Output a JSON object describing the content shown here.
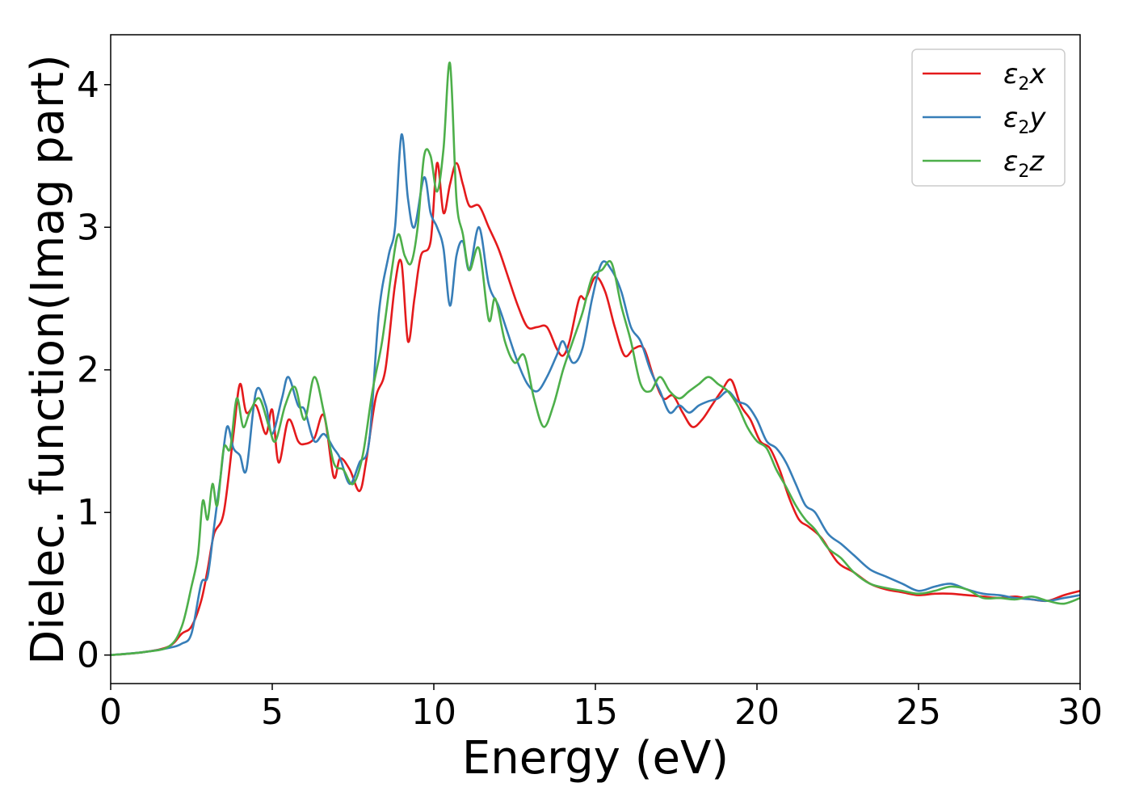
{
  "chart_data": {
    "type": "line",
    "title": "",
    "xlabel": "Energy (eV)",
    "ylabel": "Dielec. function(Imag part)",
    "xlim": [
      0,
      30
    ],
    "ylim": [
      -0.2,
      4.35
    ],
    "xticks": [
      0,
      5,
      10,
      15,
      20,
      25,
      30
    ],
    "yticks": [
      0,
      1,
      2,
      3,
      4
    ],
    "grid": false,
    "legend_position": "top-right",
    "series": [
      {
        "name": "ε2x",
        "legend": {
          "sym": "ε",
          "sub": "2",
          "var": "x"
        },
        "color": "#e41a1c",
        "x": [
          0,
          1,
          1.8,
          2.2,
          2.5,
          2.8,
          3.0,
          3.2,
          3.5,
          3.8,
          4.0,
          4.2,
          4.5,
          4.8,
          5.0,
          5.2,
          5.5,
          5.8,
          6.0,
          6.3,
          6.6,
          6.9,
          7.1,
          7.4,
          7.7,
          7.9,
          8.2,
          8.5,
          8.8,
          9.0,
          9.2,
          9.4,
          9.6,
          9.9,
          10.1,
          10.3,
          10.5,
          10.7,
          10.9,
          11.1,
          11.4,
          11.7,
          12.0,
          12.3,
          12.6,
          12.9,
          13.2,
          13.5,
          13.8,
          14.0,
          14.2,
          14.5,
          14.7,
          15.0,
          15.3,
          15.6,
          15.9,
          16.2,
          16.5,
          16.8,
          17.1,
          17.4,
          17.7,
          18.0,
          18.3,
          18.6,
          18.9,
          19.2,
          19.5,
          19.8,
          20.1,
          20.4,
          20.7,
          21.0,
          21.3,
          21.6,
          22.0,
          22.5,
          23.0,
          23.5,
          24.0,
          24.5,
          25.0,
          25.5,
          26.0,
          26.5,
          27.0,
          27.5,
          28.0,
          28.5,
          29.0,
          29.5,
          30.0
        ],
        "y": [
          0,
          0.02,
          0.06,
          0.15,
          0.2,
          0.38,
          0.6,
          0.85,
          1.0,
          1.55,
          1.9,
          1.7,
          1.75,
          1.55,
          1.72,
          1.35,
          1.65,
          1.5,
          1.48,
          1.52,
          1.68,
          1.25,
          1.38,
          1.3,
          1.15,
          1.35,
          1.8,
          2.0,
          2.6,
          2.75,
          2.2,
          2.5,
          2.8,
          2.9,
          3.45,
          3.1,
          3.3,
          3.45,
          3.3,
          3.15,
          3.15,
          3.0,
          2.85,
          2.65,
          2.45,
          2.3,
          2.3,
          2.3,
          2.15,
          2.1,
          2.2,
          2.5,
          2.5,
          2.65,
          2.55,
          2.3,
          2.1,
          2.15,
          2.15,
          1.95,
          1.8,
          1.82,
          1.7,
          1.6,
          1.65,
          1.75,
          1.85,
          1.93,
          1.75,
          1.65,
          1.5,
          1.45,
          1.3,
          1.1,
          0.95,
          0.9,
          0.82,
          0.65,
          0.58,
          0.5,
          0.46,
          0.44,
          0.42,
          0.43,
          0.43,
          0.42,
          0.41,
          0.4,
          0.41,
          0.39,
          0.38,
          0.42,
          0.45
        ]
      },
      {
        "name": "ε2y",
        "legend": {
          "sym": "ε",
          "sub": "2",
          "var": "y"
        },
        "color": "#377eb8",
        "x": [
          0,
          1,
          1.8,
          2.2,
          2.5,
          2.8,
          3.0,
          3.2,
          3.4,
          3.6,
          3.8,
          4.0,
          4.2,
          4.5,
          4.8,
          5.0,
          5.3,
          5.5,
          5.8,
          6.0,
          6.3,
          6.6,
          6.9,
          7.1,
          7.4,
          7.7,
          8.0,
          8.3,
          8.6,
          8.8,
          9.0,
          9.2,
          9.4,
          9.7,
          9.9,
          10.1,
          10.3,
          10.5,
          10.7,
          10.9,
          11.1,
          11.4,
          11.7,
          12.0,
          12.3,
          12.6,
          12.9,
          13.2,
          13.5,
          13.8,
          14.0,
          14.3,
          14.6,
          14.9,
          15.2,
          15.5,
          15.8,
          16.1,
          16.4,
          16.7,
          17.0,
          17.3,
          17.6,
          17.9,
          18.2,
          18.5,
          18.8,
          19.1,
          19.4,
          19.7,
          20.0,
          20.3,
          20.6,
          20.9,
          21.2,
          21.5,
          21.8,
          22.2,
          22.6,
          23.0,
          23.5,
          24.0,
          24.5,
          25.0,
          25.5,
          26.0,
          26.5,
          27.0,
          27.5,
          28.0,
          28.5,
          29.0,
          29.5,
          30.0
        ],
        "y": [
          0,
          0.02,
          0.05,
          0.08,
          0.15,
          0.5,
          0.55,
          0.9,
          1.25,
          1.6,
          1.45,
          1.4,
          1.3,
          1.85,
          1.75,
          1.55,
          1.8,
          1.95,
          1.75,
          1.72,
          1.5,
          1.55,
          1.45,
          1.38,
          1.2,
          1.35,
          1.5,
          2.4,
          2.8,
          3.0,
          3.65,
          3.2,
          3.0,
          3.35,
          3.1,
          3.0,
          2.85,
          2.45,
          2.8,
          2.9,
          2.7,
          3.0,
          2.6,
          2.45,
          2.25,
          2.05,
          1.9,
          1.85,
          1.95,
          2.1,
          2.2,
          2.05,
          2.15,
          2.5,
          2.75,
          2.7,
          2.55,
          2.3,
          2.2,
          2.0,
          1.85,
          1.7,
          1.75,
          1.7,
          1.75,
          1.78,
          1.8,
          1.85,
          1.78,
          1.75,
          1.65,
          1.5,
          1.45,
          1.35,
          1.2,
          1.05,
          1.0,
          0.85,
          0.78,
          0.7,
          0.6,
          0.55,
          0.5,
          0.45,
          0.48,
          0.5,
          0.46,
          0.43,
          0.42,
          0.4,
          0.39,
          0.38,
          0.4,
          0.42
        ]
      },
      {
        "name": "ε2z",
        "legend": {
          "sym": "ε",
          "sub": "2",
          "var": "z"
        },
        "color": "#4daf4a",
        "x": [
          0,
          1,
          1.8,
          2.2,
          2.5,
          2.7,
          2.85,
          3.0,
          3.15,
          3.3,
          3.5,
          3.7,
          3.9,
          4.1,
          4.3,
          4.6,
          4.9,
          5.1,
          5.4,
          5.7,
          6.0,
          6.3,
          6.6,
          6.9,
          7.2,
          7.5,
          7.8,
          8.1,
          8.4,
          8.7,
          8.9,
          9.1,
          9.3,
          9.5,
          9.7,
          9.9,
          10.1,
          10.3,
          10.5,
          10.7,
          10.9,
          11.1,
          11.4,
          11.7,
          11.9,
          12.2,
          12.5,
          12.8,
          13.1,
          13.4,
          13.7,
          14.0,
          14.3,
          14.6,
          14.9,
          15.2,
          15.5,
          15.8,
          16.1,
          16.4,
          16.7,
          17.0,
          17.3,
          17.6,
          17.9,
          18.2,
          18.5,
          18.8,
          19.1,
          19.4,
          19.7,
          20.0,
          20.3,
          20.6,
          20.9,
          21.2,
          21.5,
          21.8,
          22.2,
          22.6,
          23.0,
          23.5,
          24.0,
          24.5,
          25.0,
          25.5,
          26.0,
          26.5,
          27.0,
          27.5,
          28.0,
          28.5,
          29.0,
          29.5,
          30.0
        ],
        "y": [
          0,
          0.02,
          0.06,
          0.2,
          0.48,
          0.7,
          1.08,
          0.95,
          1.2,
          1.05,
          1.45,
          1.45,
          1.8,
          1.6,
          1.7,
          1.8,
          1.6,
          1.5,
          1.75,
          1.88,
          1.65,
          1.95,
          1.7,
          1.35,
          1.3,
          1.2,
          1.4,
          1.85,
          2.2,
          2.7,
          2.95,
          2.8,
          2.75,
          3.0,
          3.5,
          3.5,
          3.25,
          3.55,
          4.15,
          3.2,
          2.95,
          2.7,
          2.85,
          2.35,
          2.5,
          2.2,
          2.05,
          2.1,
          1.8,
          1.6,
          1.75,
          2.0,
          2.2,
          2.4,
          2.65,
          2.7,
          2.75,
          2.45,
          2.2,
          1.9,
          1.85,
          1.95,
          1.85,
          1.8,
          1.85,
          1.9,
          1.95,
          1.9,
          1.85,
          1.75,
          1.6,
          1.5,
          1.45,
          1.3,
          1.18,
          1.05,
          0.95,
          0.88,
          0.75,
          0.68,
          0.58,
          0.5,
          0.47,
          0.45,
          0.43,
          0.45,
          0.48,
          0.46,
          0.4,
          0.4,
          0.39,
          0.41,
          0.38,
          0.36,
          0.4
        ]
      }
    ]
  }
}
